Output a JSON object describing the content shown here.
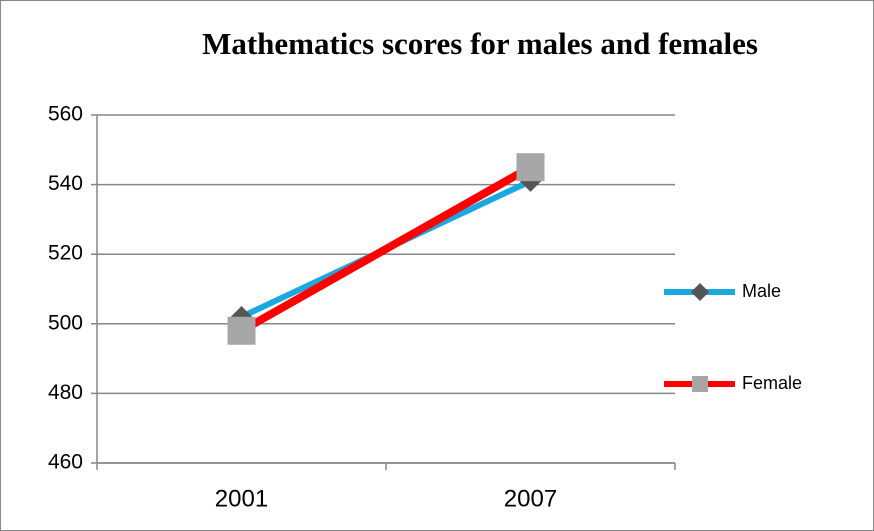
{
  "chart_data": {
    "type": "line",
    "title": "Mathematics scores for males and females",
    "categories": [
      "2001",
      "2007"
    ],
    "series": [
      {
        "name": "Male",
        "color": "#1aa8e0",
        "marker_color": "#555555",
        "marker": "diamond",
        "values": [
          502,
          541
        ]
      },
      {
        "name": "Female",
        "color": "#ff0000",
        "marker_color": "#a6a6a6",
        "marker": "square",
        "values": [
          498,
          545
        ]
      }
    ],
    "ylim": [
      460,
      560
    ],
    "yticks": [
      460,
      480,
      500,
      520,
      540,
      560
    ],
    "grid": true,
    "legend": "right"
  }
}
